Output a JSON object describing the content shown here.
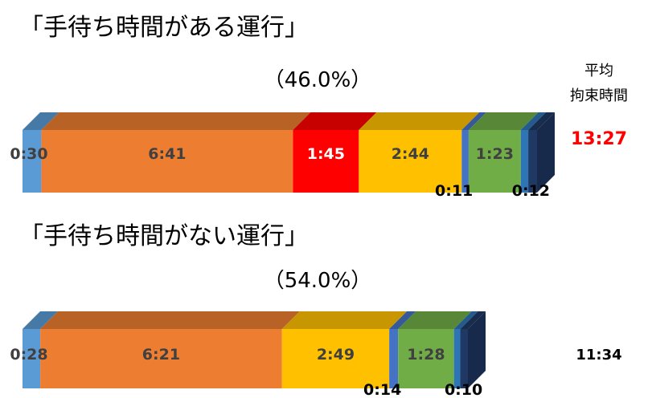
{
  "colors": {
    "segments": [
      "#5B9BD5",
      "#ED7D31",
      "#FF0000",
      "#FFC000",
      "#4472C4",
      "#70AD47",
      "#2E75B6",
      "#1F3864"
    ]
  },
  "avg_header": [
    "平均",
    "拘束時間"
  ],
  "chart_data": [
    {
      "type": "bar",
      "title": "「手待ち時間がある運行」",
      "subtitle": "（46.0%）",
      "avg_value": "13:27",
      "avg_color": "#FF0000",
      "segments": [
        {
          "label": "0:30",
          "minutes": 30,
          "color": "#5B9BD5"
        },
        {
          "label": "6:41",
          "minutes": 401,
          "color": "#ED7D31"
        },
        {
          "label": "1:45",
          "minutes": 105,
          "color": "#FF0000"
        },
        {
          "label": "2:44",
          "minutes": 164,
          "color": "#FFC000"
        },
        {
          "label": "0:11",
          "minutes": 11,
          "color": "#4472C4"
        },
        {
          "label": "1:23",
          "minutes": 83,
          "color": "#70AD47"
        },
        {
          "label": "0:12",
          "minutes": 12,
          "color": "#2E75B6"
        },
        {
          "label": "",
          "minutes": 14,
          "color": "#1F3864"
        }
      ]
    },
    {
      "type": "bar",
      "title": "「手待ち時間がない運行」",
      "subtitle": "（54.0%）",
      "avg_value": "11:34",
      "avg_color": "#000000",
      "segments": [
        {
          "label": "0:28",
          "minutes": 28,
          "color": "#5B9BD5"
        },
        {
          "label": "6:21",
          "minutes": 381,
          "color": "#ED7D31"
        },
        {
          "label": "2:49",
          "minutes": 169,
          "color": "#FFC000"
        },
        {
          "label": "0:14",
          "minutes": 14,
          "color": "#4472C4"
        },
        {
          "label": "1:28",
          "minutes": 88,
          "color": "#70AD47"
        },
        {
          "label": "0:10",
          "minutes": 10,
          "color": "#2E75B6"
        },
        {
          "label": "",
          "minutes": 12,
          "color": "#1F3864"
        }
      ]
    }
  ]
}
